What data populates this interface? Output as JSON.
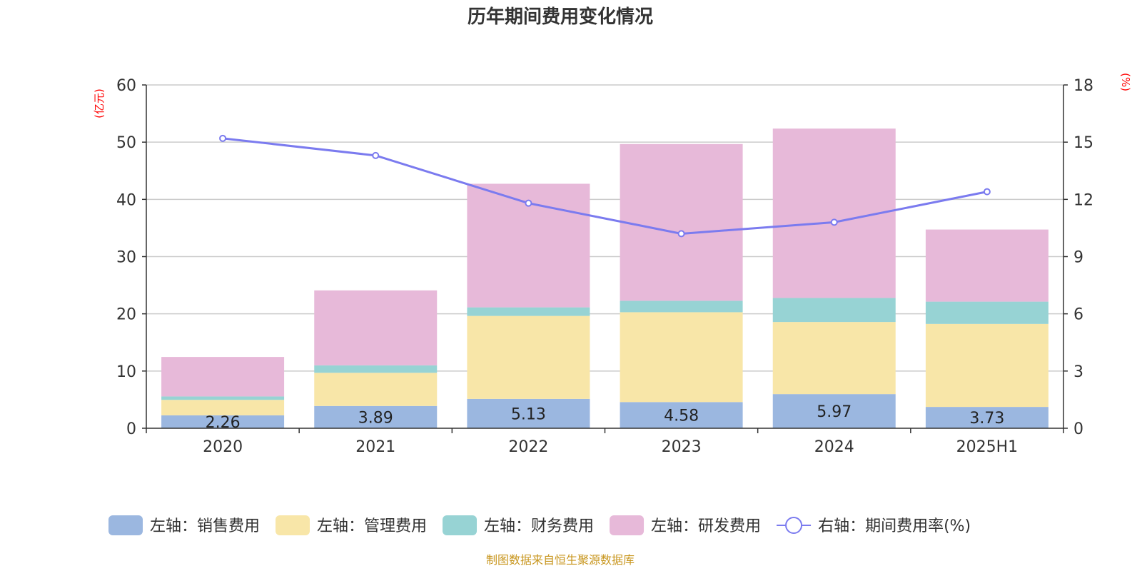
{
  "chart_data": {
    "type": "bar",
    "title": "历年期间费用变化情况",
    "left_axis_unit": "(亿元)",
    "right_axis_unit": "(%)",
    "categories": [
      "2020",
      "2021",
      "2022",
      "2023",
      "2024",
      "2025H1"
    ],
    "left_ylim": [
      0,
      60
    ],
    "left_yticks": [
      "0",
      "10",
      "20",
      "30",
      "40",
      "50",
      "60"
    ],
    "right_ylim": [
      0,
      18
    ],
    "right_yticks": [
      "0",
      "3",
      "6",
      "9",
      "12",
      "15",
      "18"
    ],
    "grid": true,
    "legend_position": "bottom",
    "series": [
      {
        "name": "左轴：销售费用",
        "type": "bar",
        "axis": "left",
        "color": "#9bb7e0",
        "values": [
          2.26,
          3.89,
          5.13,
          4.58,
          5.97,
          3.73
        ],
        "labels": [
          "2.26",
          "3.89",
          "5.13",
          "4.58",
          "5.97",
          "3.73"
        ]
      },
      {
        "name": "左轴：管理费用",
        "type": "bar",
        "axis": "left",
        "color": "#f8e6a8",
        "values": [
          2.7,
          5.8,
          14.5,
          15.7,
          12.6,
          14.5
        ]
      },
      {
        "name": "左轴：财务费用",
        "type": "bar",
        "axis": "left",
        "color": "#97d3d4",
        "values": [
          0.6,
          1.3,
          1.5,
          2.0,
          4.2,
          3.9
        ]
      },
      {
        "name": "左轴：研发费用",
        "type": "bar",
        "axis": "left",
        "color": "#e7b9d9",
        "values": [
          6.9,
          13.1,
          21.6,
          27.4,
          29.6,
          12.6
        ]
      },
      {
        "name": "右轴：期间费用率(%)",
        "type": "line",
        "axis": "right",
        "color": "#7b7bef",
        "values": [
          15.2,
          14.3,
          11.8,
          10.2,
          10.8,
          12.4
        ]
      }
    ]
  },
  "source": "制图数据来自恒生聚源数据库"
}
